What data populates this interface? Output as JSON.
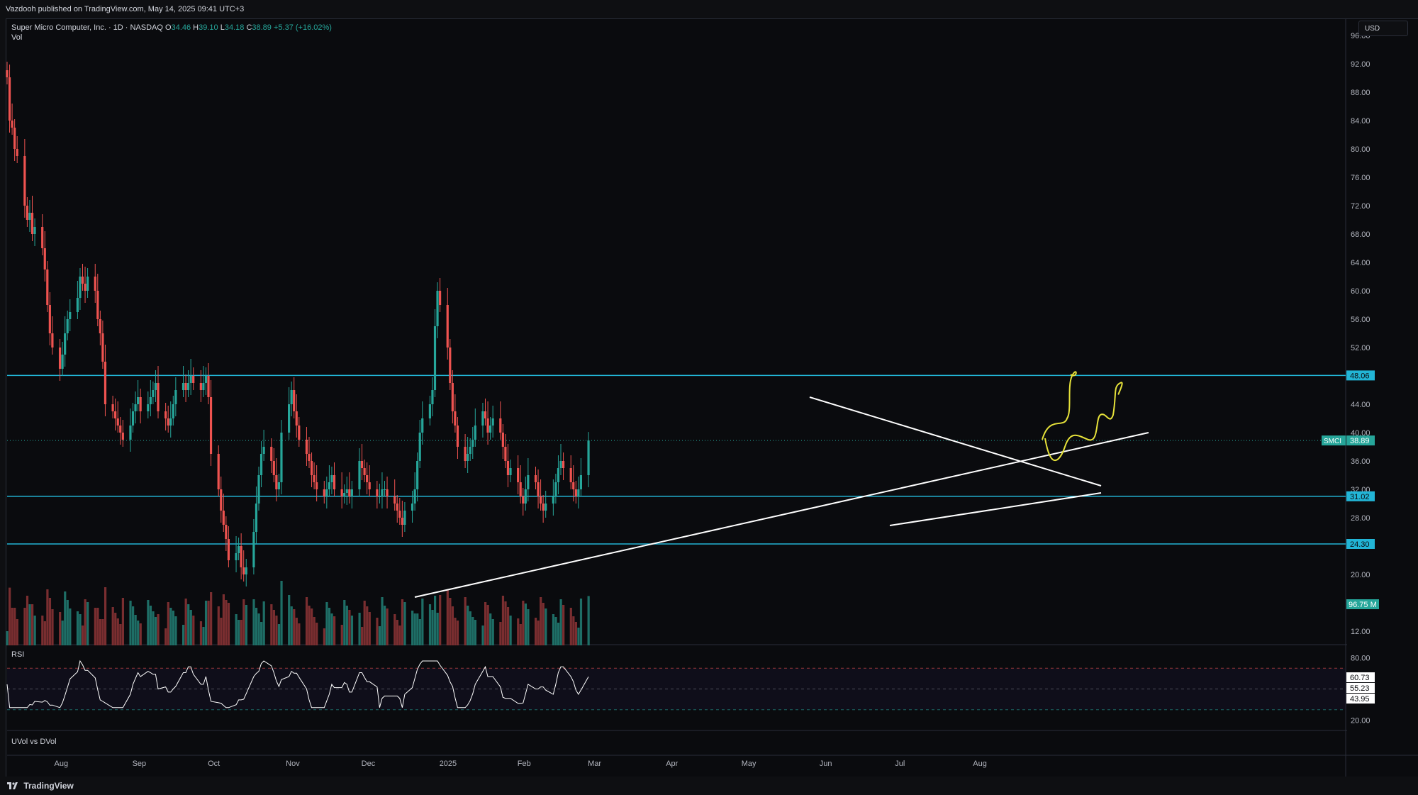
{
  "header": {
    "published": "Vazdooh published on TradingView.com, May 14, 2025 09:41 UTC+3"
  },
  "legend": {
    "name": "Super Micro Computer, Inc. · 1D · NASDAQ",
    "o_label": "O",
    "o_value": "34.46",
    "h_label": "H",
    "h_value": "39.10",
    "l_label": "L",
    "l_value": "34.18",
    "c_label": "C",
    "c_value": "38.89",
    "change": "+5.37 (+16.02%)",
    "vol_label": "Vol"
  },
  "currency_button": "USD",
  "colors": {
    "up": "#26a69a",
    "down": "#ef5350",
    "up_vol": "#1e6e66",
    "down_vol": "#7a2e30",
    "hline": "#22b5d6",
    "trend": "#ffffff",
    "projection": "#e6e23a",
    "rsi_line": "#ffffff"
  },
  "chart_data": {
    "type": "candlestick",
    "symbol": "SMCI",
    "ylim": [
      10,
      98
    ],
    "y_ticks": [
      "96.00",
      "92.00",
      "88.00",
      "84.00",
      "80.00",
      "76.00",
      "72.00",
      "68.00",
      "64.00",
      "60.00",
      "56.00",
      "52.00",
      "44.00",
      "40.00",
      "36.00",
      "32.00",
      "28.00",
      "20.00",
      "12.00"
    ],
    "x_ticks": [
      "Aug",
      "Sep",
      "Oct",
      "Nov",
      "Dec",
      "2025",
      "Feb",
      "Mar",
      "Apr",
      "May",
      "Jun",
      "Jul",
      "Aug"
    ],
    "x_tick_days": [
      25,
      56,
      86,
      117,
      147,
      178,
      209,
      237,
      268,
      298,
      329,
      359,
      390
    ],
    "horizontal_levels": [
      {
        "value": 48.06,
        "label": "48.06"
      },
      {
        "value": 31.02,
        "label": "31.02"
      },
      {
        "value": 24.3,
        "label": "24.30"
      }
    ],
    "last_price": {
      "value": 38.89,
      "label": "38.89",
      "symbol": "SMCI"
    },
    "volume_label": "96.75 M",
    "close_series": [
      [
        4,
        90.1
      ],
      [
        5,
        84
      ],
      [
        6,
        83
      ],
      [
        7,
        80
      ],
      [
        8,
        79
      ],
      [
        11,
        72
      ],
      [
        12,
        70
      ],
      [
        13,
        71
      ],
      [
        14,
        68
      ],
      [
        15,
        69
      ],
      [
        18,
        66
      ],
      [
        19,
        63
      ],
      [
        20,
        58
      ],
      [
        21,
        54
      ],
      [
        22,
        52
      ],
      [
        25,
        49
      ],
      [
        26,
        51
      ],
      [
        27,
        54
      ],
      [
        28,
        56
      ],
      [
        29,
        57
      ],
      [
        32,
        59
      ],
      [
        33,
        62
      ],
      [
        34,
        61
      ],
      [
        35,
        60
      ],
      [
        36,
        62
      ],
      [
        39,
        60
      ],
      [
        40,
        56
      ],
      [
        41,
        54
      ],
      [
        42,
        50
      ],
      [
        43,
        44
      ],
      [
        46,
        43
      ],
      [
        47,
        42
      ],
      [
        48,
        41
      ],
      [
        49,
        40
      ],
      [
        50,
        39
      ],
      [
        53,
        41
      ],
      [
        54,
        43
      ],
      [
        55,
        44
      ],
      [
        56,
        45
      ],
      [
        57,
        43
      ],
      [
        60,
        44
      ],
      [
        61,
        45
      ],
      [
        62,
        46
      ],
      [
        63,
        47
      ],
      [
        64,
        43
      ],
      [
        67,
        42
      ],
      [
        68,
        41
      ],
      [
        69,
        42
      ],
      [
        70,
        44
      ],
      [
        71,
        46
      ],
      [
        74,
        47
      ],
      [
        75,
        46
      ],
      [
        76,
        47
      ],
      [
        77,
        48
      ],
      [
        78,
        47
      ],
      [
        81,
        46
      ],
      [
        82,
        47
      ],
      [
        83,
        48
      ],
      [
        84,
        45
      ],
      [
        85,
        37
      ],
      [
        88,
        32
      ],
      [
        89,
        29
      ],
      [
        90,
        27
      ],
      [
        91,
        25
      ],
      [
        92,
        22
      ],
      [
        95,
        23
      ],
      [
        96,
        24
      ],
      [
        97,
        21
      ],
      [
        98,
        20
      ],
      [
        99,
        21
      ],
      [
        102,
        26
      ],
      [
        103,
        30
      ],
      [
        104,
        34
      ],
      [
        105,
        37
      ],
      [
        106,
        38
      ],
      [
        109,
        36
      ],
      [
        110,
        34
      ],
      [
        111,
        32
      ],
      [
        112,
        33
      ],
      [
        113,
        40
      ],
      [
        116,
        44
      ],
      [
        117,
        46
      ],
      [
        118,
        43
      ],
      [
        119,
        41
      ],
      [
        120,
        39
      ],
      [
        123,
        37
      ],
      [
        124,
        36
      ],
      [
        125,
        34
      ],
      [
        126,
        33
      ],
      [
        127,
        32
      ],
      [
        130,
        31
      ],
      [
        131,
        32
      ],
      [
        132,
        33
      ],
      [
        133,
        34
      ],
      [
        134,
        32
      ],
      [
        137,
        31
      ],
      [
        138,
        31.5
      ],
      [
        139,
        32
      ],
      [
        140,
        31
      ],
      [
        141,
        32
      ],
      [
        144,
        36
      ],
      [
        145,
        35
      ],
      [
        146,
        34
      ],
      [
        147,
        33
      ],
      [
        148,
        32
      ],
      [
        151,
        31
      ],
      [
        152,
        31
      ],
      [
        153,
        32
      ],
      [
        154,
        32
      ],
      [
        155,
        31
      ],
      [
        158,
        30
      ],
      [
        159,
        29
      ],
      [
        160,
        28
      ],
      [
        161,
        27
      ],
      [
        162,
        29
      ],
      [
        165,
        30
      ],
      [
        166,
        32
      ],
      [
        167,
        36
      ],
      [
        168,
        40
      ],
      [
        169,
        42
      ],
      [
        172,
        44
      ],
      [
        173,
        46
      ],
      [
        174,
        55
      ],
      [
        175,
        60
      ],
      [
        176,
        58
      ],
      [
        179,
        52
      ],
      [
        180,
        47
      ],
      [
        181,
        43
      ],
      [
        182,
        41
      ],
      [
        183,
        38
      ],
      [
        186,
        36
      ],
      [
        187,
        37
      ],
      [
        188,
        38
      ],
      [
        189,
        39
      ],
      [
        190,
        41
      ],
      [
        193,
        43
      ],
      [
        194,
        42
      ],
      [
        195,
        40
      ],
      [
        196,
        41
      ],
      [
        197,
        42
      ],
      [
        200,
        40
      ],
      [
        201,
        38
      ],
      [
        202,
        36
      ],
      [
        203,
        34
      ],
      [
        204,
        35
      ],
      [
        207,
        33
      ],
      [
        208,
        31
      ],
      [
        209,
        30
      ],
      [
        210,
        32
      ],
      [
        211,
        34
      ],
      [
        214,
        33
      ],
      [
        215,
        31
      ],
      [
        216,
        30
      ],
      [
        217,
        29
      ],
      [
        218,
        30
      ],
      [
        221,
        31
      ],
      [
        222,
        33
      ],
      [
        223,
        35
      ],
      [
        224,
        36
      ],
      [
        225,
        35
      ],
      [
        228,
        33
      ],
      [
        229,
        32
      ],
      [
        230,
        31
      ],
      [
        231,
        32
      ],
      [
        232,
        34
      ],
      [
        235,
        38.89
      ]
    ],
    "rsi": {
      "label": "RSI",
      "ylim": [
        10,
        90
      ],
      "levels": [
        "80.00",
        "20.00"
      ],
      "values_shown": [
        "60.73",
        "55.23",
        "43.95"
      ]
    },
    "uvol_label": "UVol vs DVol"
  },
  "footer": {
    "brand": "TradingView"
  }
}
